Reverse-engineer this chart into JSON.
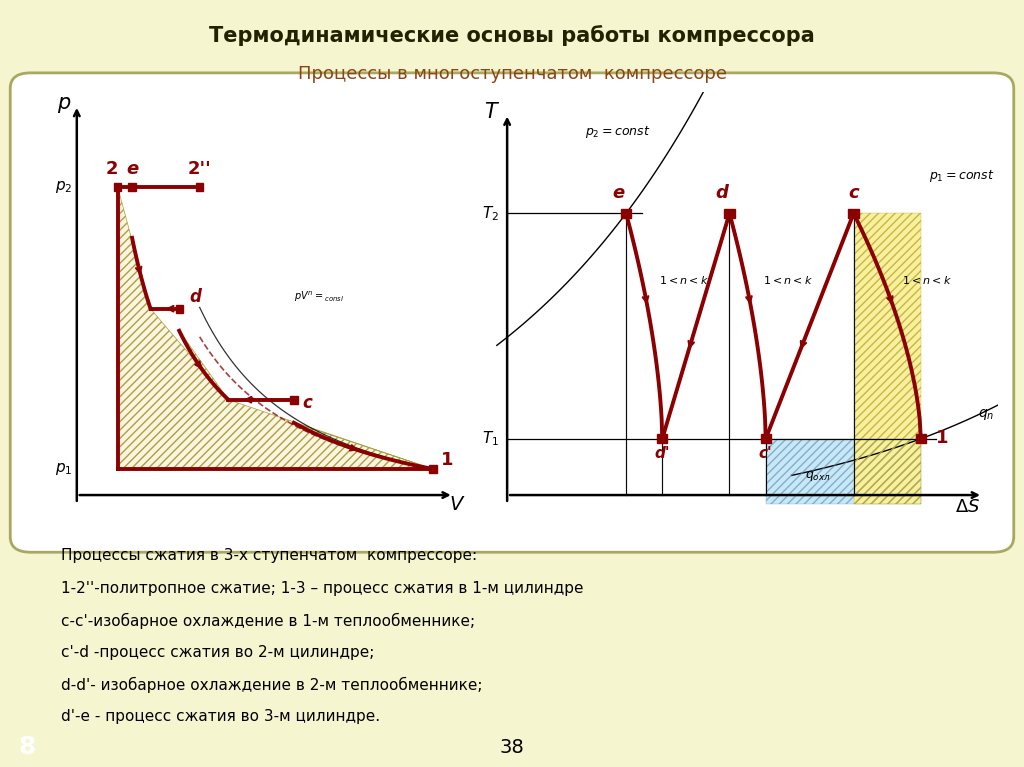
{
  "title": "Термодинамические основы работы компрессора",
  "subtitle": "Процессы в многоступенчатом  компрессоре",
  "bg_color": "#f5f5d0",
  "dark_red": "#8B0000",
  "footer_bg": "#8ca050",
  "footer_text": "38",
  "corner_num": "8",
  "description_lines": [
    "Процессы сжатия в 3-х ступенчатом  компрессоре:",
    "1-2''-политропное сжатие; 1-3 – процесс сжатия в 1-м цилиндре",
    "с-с'-изобарное охлаждение в 1-м теплообменнике;",
    "с'-d -процесс сжатия во 2-м цилиндре;",
    "d-d'- изобарное охлаждение в 2-м теплообменнике;",
    "d'-е - процесс сжатия во 3-м цилиндре."
  ]
}
